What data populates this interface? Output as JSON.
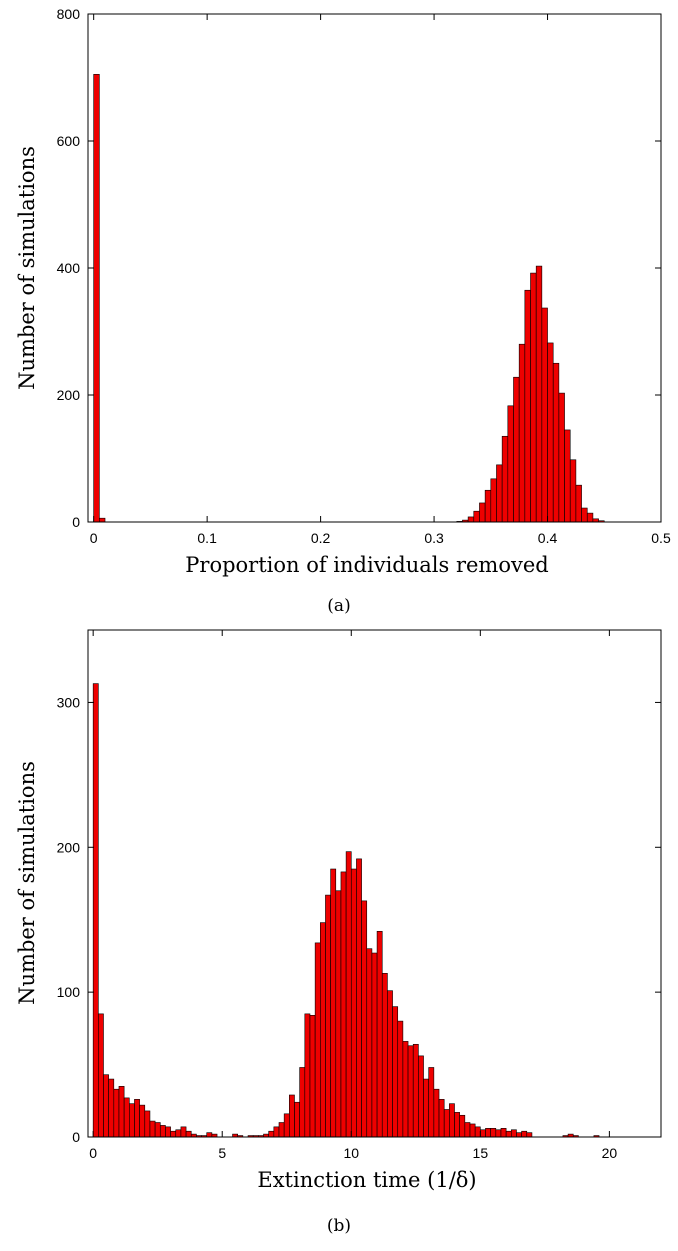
{
  "chart_data": [
    {
      "type": "bar",
      "panel_caption": "(a)",
      "xlabel": "Proportion of individuals removed",
      "ylabel": "Number of simulations",
      "xlim": [
        -0.005,
        0.5
      ],
      "ylim": [
        0,
        800
      ],
      "xticks": [
        0,
        0.1,
        0.2,
        0.3,
        0.4,
        0.5
      ],
      "xtick_labels": [
        "0",
        "0.1",
        "0.2",
        "0.3",
        "0.4",
        "0.5"
      ],
      "yticks": [
        0,
        200,
        400,
        600,
        800
      ],
      "ytick_labels": [
        "0",
        "200",
        "400",
        "600",
        "800"
      ],
      "bin_width": 0.005,
      "grid": false,
      "bar_color": "#ee0000",
      "bins": [
        {
          "x": 0.0,
          "y": 705
        },
        {
          "x": 0.005,
          "y": 6
        },
        {
          "x": 0.32,
          "y": 1
        },
        {
          "x": 0.325,
          "y": 3
        },
        {
          "x": 0.33,
          "y": 8
        },
        {
          "x": 0.335,
          "y": 17
        },
        {
          "x": 0.34,
          "y": 30
        },
        {
          "x": 0.345,
          "y": 50
        },
        {
          "x": 0.35,
          "y": 68
        },
        {
          "x": 0.355,
          "y": 90
        },
        {
          "x": 0.36,
          "y": 135
        },
        {
          "x": 0.365,
          "y": 183
        },
        {
          "x": 0.37,
          "y": 228
        },
        {
          "x": 0.375,
          "y": 280
        },
        {
          "x": 0.38,
          "y": 365
        },
        {
          "x": 0.385,
          "y": 392
        },
        {
          "x": 0.39,
          "y": 403
        },
        {
          "x": 0.395,
          "y": 337
        },
        {
          "x": 0.4,
          "y": 282
        },
        {
          "x": 0.405,
          "y": 250
        },
        {
          "x": 0.41,
          "y": 203
        },
        {
          "x": 0.415,
          "y": 145
        },
        {
          "x": 0.42,
          "y": 98
        },
        {
          "x": 0.425,
          "y": 58
        },
        {
          "x": 0.43,
          "y": 22
        },
        {
          "x": 0.435,
          "y": 14
        },
        {
          "x": 0.44,
          "y": 5
        },
        {
          "x": 0.445,
          "y": 2
        }
      ]
    },
    {
      "type": "bar",
      "panel_caption": "(b)",
      "xlabel": "Extinction time (1/δ)",
      "ylabel": "Number of simulations",
      "xlim": [
        -0.2,
        22
      ],
      "ylim": [
        0,
        350
      ],
      "xticks": [
        0,
        5,
        10,
        15,
        20
      ],
      "xtick_labels": [
        "0",
        "5",
        "10",
        "15",
        "20"
      ],
      "yticks": [
        0,
        100,
        200,
        300
      ],
      "ytick_labels": [
        "0",
        "100",
        "200",
        "300"
      ],
      "bin_width": 0.2,
      "grid": false,
      "bar_color": "#ee0000",
      "bins": [
        {
          "x": 0.0,
          "y": 313
        },
        {
          "x": 0.2,
          "y": 85
        },
        {
          "x": 0.4,
          "y": 43
        },
        {
          "x": 0.6,
          "y": 40
        },
        {
          "x": 0.8,
          "y": 33
        },
        {
          "x": 1.0,
          "y": 35
        },
        {
          "x": 1.2,
          "y": 27
        },
        {
          "x": 1.4,
          "y": 23
        },
        {
          "x": 1.6,
          "y": 26
        },
        {
          "x": 1.8,
          "y": 22
        },
        {
          "x": 2.0,
          "y": 18
        },
        {
          "x": 2.2,
          "y": 11
        },
        {
          "x": 2.4,
          "y": 10
        },
        {
          "x": 2.6,
          "y": 8
        },
        {
          "x": 2.8,
          "y": 7
        },
        {
          "x": 3.0,
          "y": 4
        },
        {
          "x": 3.2,
          "y": 5
        },
        {
          "x": 3.4,
          "y": 7
        },
        {
          "x": 3.6,
          "y": 4
        },
        {
          "x": 3.8,
          "y": 2
        },
        {
          "x": 4.0,
          "y": 1
        },
        {
          "x": 4.2,
          "y": 1
        },
        {
          "x": 4.4,
          "y": 3
        },
        {
          "x": 4.6,
          "y": 2
        },
        {
          "x": 5.4,
          "y": 2
        },
        {
          "x": 5.6,
          "y": 1
        },
        {
          "x": 6.0,
          "y": 1
        },
        {
          "x": 6.2,
          "y": 1
        },
        {
          "x": 6.4,
          "y": 1
        },
        {
          "x": 6.6,
          "y": 2
        },
        {
          "x": 6.8,
          "y": 4
        },
        {
          "x": 7.0,
          "y": 7
        },
        {
          "x": 7.2,
          "y": 10
        },
        {
          "x": 7.4,
          "y": 16
        },
        {
          "x": 7.6,
          "y": 29
        },
        {
          "x": 7.8,
          "y": 24
        },
        {
          "x": 8.0,
          "y": 48
        },
        {
          "x": 8.2,
          "y": 85
        },
        {
          "x": 8.4,
          "y": 84
        },
        {
          "x": 8.6,
          "y": 134
        },
        {
          "x": 8.8,
          "y": 148
        },
        {
          "x": 9.0,
          "y": 167
        },
        {
          "x": 9.2,
          "y": 185
        },
        {
          "x": 9.4,
          "y": 170
        },
        {
          "x": 9.6,
          "y": 183
        },
        {
          "x": 9.8,
          "y": 197
        },
        {
          "x": 10.0,
          "y": 185
        },
        {
          "x": 10.2,
          "y": 192
        },
        {
          "x": 10.4,
          "y": 163
        },
        {
          "x": 10.6,
          "y": 130
        },
        {
          "x": 10.8,
          "y": 127
        },
        {
          "x": 11.0,
          "y": 142
        },
        {
          "x": 11.2,
          "y": 113
        },
        {
          "x": 11.4,
          "y": 101
        },
        {
          "x": 11.6,
          "y": 90
        },
        {
          "x": 11.8,
          "y": 80
        },
        {
          "x": 12.0,
          "y": 66
        },
        {
          "x": 12.2,
          "y": 63
        },
        {
          "x": 12.4,
          "y": 64
        },
        {
          "x": 12.6,
          "y": 56
        },
        {
          "x": 12.8,
          "y": 40
        },
        {
          "x": 13.0,
          "y": 48
        },
        {
          "x": 13.2,
          "y": 33
        },
        {
          "x": 13.4,
          "y": 26
        },
        {
          "x": 13.6,
          "y": 19
        },
        {
          "x": 13.8,
          "y": 23
        },
        {
          "x": 14.0,
          "y": 17
        },
        {
          "x": 14.2,
          "y": 15
        },
        {
          "x": 14.4,
          "y": 10
        },
        {
          "x": 14.6,
          "y": 9
        },
        {
          "x": 14.8,
          "y": 7
        },
        {
          "x": 15.0,
          "y": 5
        },
        {
          "x": 15.2,
          "y": 6
        },
        {
          "x": 15.4,
          "y": 6
        },
        {
          "x": 15.6,
          "y": 5
        },
        {
          "x": 15.8,
          "y": 6
        },
        {
          "x": 16.0,
          "y": 4
        },
        {
          "x": 16.2,
          "y": 5
        },
        {
          "x": 16.4,
          "y": 3
        },
        {
          "x": 16.6,
          "y": 4
        },
        {
          "x": 16.8,
          "y": 3
        },
        {
          "x": 18.2,
          "y": 1
        },
        {
          "x": 18.4,
          "y": 2
        },
        {
          "x": 18.6,
          "y": 1
        },
        {
          "x": 19.4,
          "y": 1
        }
      ]
    }
  ]
}
